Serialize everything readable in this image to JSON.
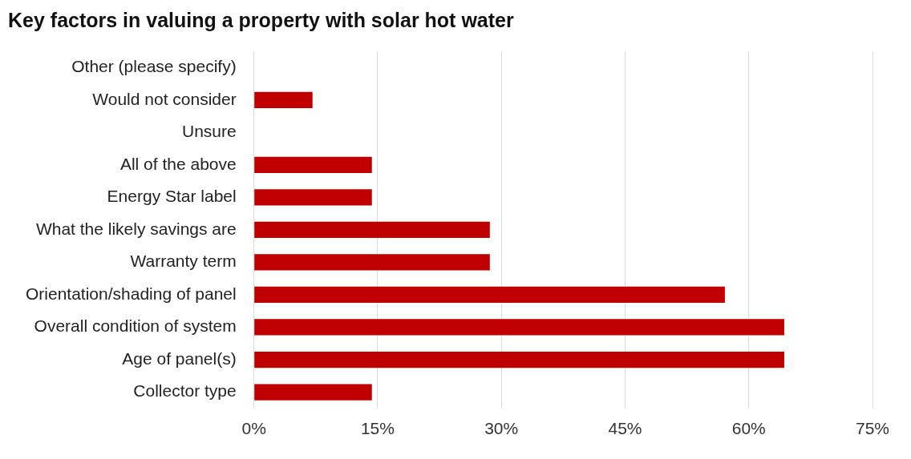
{
  "chart_data": {
    "type": "bar",
    "orientation": "horizontal",
    "title": "Key factors in valuing a property with solar hot water",
    "categories": [
      "Other (please specify)",
      "Would not consider",
      "Unsure",
      "All of the above",
      "Energy Star label",
      "What the likely savings are",
      "Warranty term",
      "Orientation/shading of panel",
      "Overall condition of system",
      "Age of panel(s)",
      "Collector type"
    ],
    "values": [
      0,
      7.1,
      0,
      14.3,
      14.3,
      28.6,
      28.6,
      57.1,
      64.3,
      64.3,
      14.3
    ],
    "color": "#c00000",
    "xlim": [
      0,
      75
    ],
    "xticks": [
      {
        "value": 0,
        "label": "0%"
      },
      {
        "value": 15,
        "label": "15%"
      },
      {
        "value": 30,
        "label": "30%"
      },
      {
        "value": 45,
        "label": "45%"
      },
      {
        "value": 60,
        "label": "60%"
      },
      {
        "value": 75,
        "label": "75%"
      }
    ],
    "grid": "x",
    "legend": false
  }
}
